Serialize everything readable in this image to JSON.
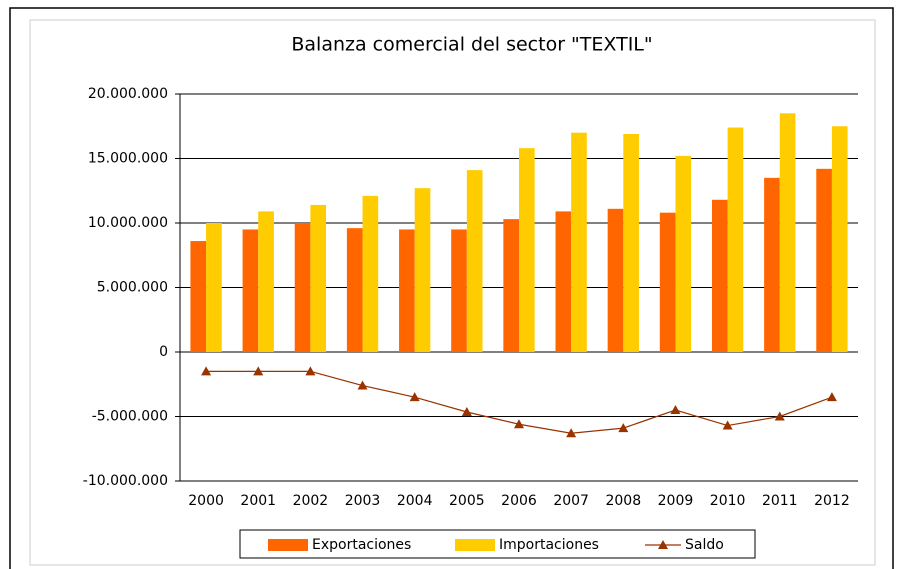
{
  "chart_data": {
    "type": "bar_line",
    "title": "Balanza comercial del sector \"TEXTIL\"",
    "categories": [
      "2000",
      "2001",
      "2002",
      "2003",
      "2004",
      "2005",
      "2006",
      "2007",
      "2008",
      "2009",
      "2010",
      "2011",
      "2012"
    ],
    "series": [
      {
        "name": "Exportaciones",
        "type": "bar",
        "color": "#ff6600",
        "values": [
          8600000,
          9500000,
          10000000,
          9600000,
          9500000,
          9500000,
          10300000,
          10900000,
          11100000,
          10800000,
          11800000,
          13500000,
          14200000
        ]
      },
      {
        "name": "Importaciones",
        "type": "bar",
        "color": "#ffcc00",
        "values": [
          10000000,
          10900000,
          11400000,
          12100000,
          12700000,
          14100000,
          15800000,
          17000000,
          16900000,
          15200000,
          17400000,
          18500000,
          17500000
        ]
      },
      {
        "name": "Saldo",
        "type": "line",
        "color": "#993300",
        "values": [
          -1500000,
          -1500000,
          -1500000,
          -2600000,
          -3500000,
          -4650000,
          -5600000,
          -6300000,
          -5900000,
          -4500000,
          -5700000,
          -5000000,
          -3500000
        ]
      }
    ],
    "ylim": [
      -10000000,
      20000000
    ],
    "yticks": [
      {
        "value": -10000000,
        "label": "-10.000.000"
      },
      {
        "value": -5000000,
        "label": "-5.000.000"
      },
      {
        "value": 0,
        "label": "0"
      },
      {
        "value": 5000000,
        "label": "5.000.000"
      },
      {
        "value": 10000000,
        "label": "10.000.000"
      },
      {
        "value": 15000000,
        "label": "15.000.000"
      },
      {
        "value": 20000000,
        "label": "20.000.000"
      }
    ],
    "grid": true,
    "legend": "bottom"
  }
}
